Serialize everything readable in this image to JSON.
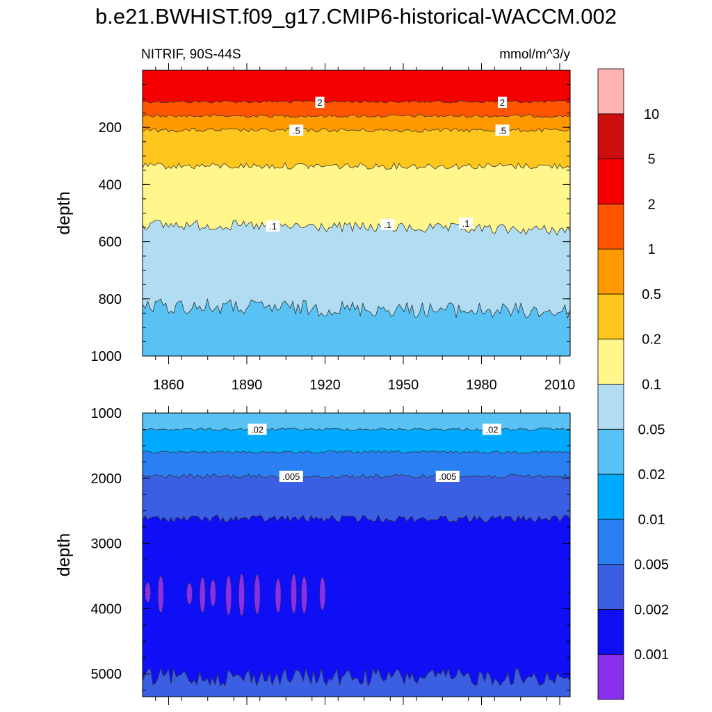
{
  "title": "b.e21.BWHIST.f09_g17.CMIP6-historical-WACCM.002",
  "chart_data": {
    "type": "heatmap",
    "variable_label": "NITRIF, 90S-44S",
    "units_label": "mmol/m^3/y",
    "ylabel": "depth",
    "x_range": [
      1850,
      2014
    ],
    "x_ticks": [
      "1860",
      "1890",
      "1920",
      "1950",
      "1980",
      "2010"
    ],
    "x_tick_values": [
      1860,
      1890,
      1920,
      1950,
      1980,
      2010
    ],
    "colorbar": {
      "colors": [
        "#8a30ec",
        "#0f0ff5",
        "#3a5fe2",
        "#2a80f2",
        "#00aaff",
        "#58c2f4",
        "#b2dcf2",
        "#fff68c",
        "#ffc71e",
        "#ff9900",
        "#ff5500",
        "#f50000",
        "#cd0e0e",
        "#ffb3b3"
      ],
      "levels": [
        "0.001",
        "0.002",
        "0.005",
        "0.01",
        "0.02",
        "0.05",
        "0.1",
        "0.2",
        "0.5",
        "1",
        "2",
        "5",
        "10"
      ]
    },
    "panels": [
      {
        "name": "upper",
        "ylim": [
          0,
          1000
        ],
        "y_ticks": [
          "200",
          "400",
          "600",
          "800",
          "1000"
        ],
        "y_tick_values": [
          200,
          400,
          600,
          800,
          1000
        ],
        "bands": [
          {
            "from": 0,
            "to": 110,
            "color": "#f50000"
          },
          {
            "from": 110,
            "to": 160,
            "color": "#ff5500"
          },
          {
            "from": 160,
            "to": 210,
            "color": "#ff9900"
          },
          {
            "from": 210,
            "to": 335,
            "color": "#ffc71e"
          },
          {
            "from": 335,
            "to": 540,
            "color": "#fff68c"
          },
          {
            "from": 540,
            "to": 825,
            "color": "#b2dcf2"
          },
          {
            "from": 825,
            "to": 1000,
            "color": "#58c2f4"
          }
        ],
        "contour_labels": [
          {
            "text": "2",
            "x": 1918,
            "depth": 112
          },
          {
            "text": "2",
            "x": 1988,
            "depth": 112
          },
          {
            "text": ".5",
            "x": 1909,
            "depth": 210
          },
          {
            "text": ".5",
            "x": 1988,
            "depth": 210
          },
          {
            "text": ".1",
            "x": 1900,
            "depth": 545
          },
          {
            "text": ".1",
            "x": 1944,
            "depth": 540
          },
          {
            "text": ".1",
            "x": 1974,
            "depth": 535
          }
        ]
      },
      {
        "name": "lower",
        "ylim": [
          1000,
          5350
        ],
        "y_ticks": [
          "1000",
          "2000",
          "3000",
          "4000",
          "5000"
        ],
        "y_tick_values": [
          1000,
          2000,
          3000,
          4000,
          5000
        ],
        "bands": [
          {
            "from": 1000,
            "to": 1250,
            "color": "#58c2f4"
          },
          {
            "from": 1250,
            "to": 1600,
            "color": "#00aaff"
          },
          {
            "from": 1600,
            "to": 1970,
            "color": "#2a80f2"
          },
          {
            "from": 1970,
            "to": 2620,
            "color": "#3a5fe2"
          },
          {
            "from": 2620,
            "to": 5050,
            "color": "#0f0ff5"
          },
          {
            "from": 5050,
            "to": 5350,
            "color": "#3a5fe2"
          }
        ],
        "contour_labels": [
          {
            "text": ".02",
            "x": 1894,
            "depth": 1250
          },
          {
            "text": ".02",
            "x": 1984,
            "depth": 1250
          },
          {
            "text": ".005",
            "x": 1907,
            "depth": 1970
          },
          {
            "text": ".005",
            "x": 1967,
            "depth": 1970
          }
        ]
      }
    ]
  }
}
